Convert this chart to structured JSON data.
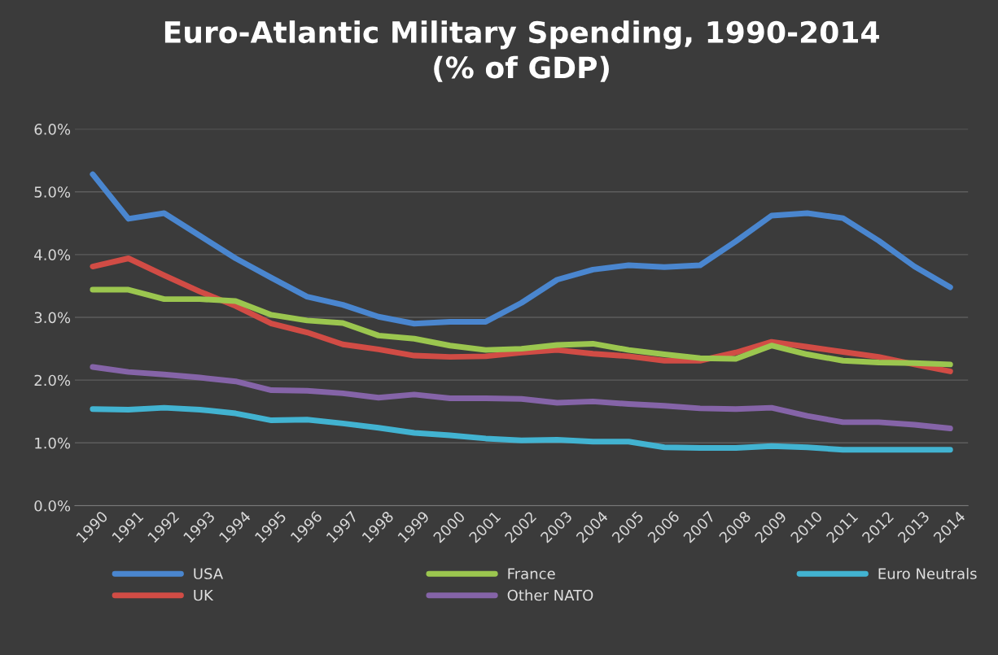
{
  "chart_data": {
    "type": "line",
    "title": "Euro-Atlantic Military Spending, 1990-2014\n(% of GDP)",
    "categories": [
      "1990",
      "1991",
      "1992",
      "1993",
      "1994",
      "1995",
      "1996",
      "1997",
      "1998",
      "1999",
      "2000",
      "2001",
      "2002",
      "2003",
      "2004",
      "2005",
      "2006",
      "2007",
      "2008",
      "2009",
      "2010",
      "2011",
      "2012",
      "2013",
      "2014"
    ],
    "series": [
      {
        "name": "USA",
        "color": "#4a86cf",
        "values": [
          5.28,
          4.57,
          4.66,
          4.3,
          3.94,
          3.63,
          3.33,
          3.2,
          3.01,
          2.9,
          2.93,
          2.93,
          3.23,
          3.6,
          3.76,
          3.83,
          3.8,
          3.83,
          4.21,
          4.62,
          4.66,
          4.58,
          4.22,
          3.81,
          3.48
        ]
      },
      {
        "name": "UK",
        "color": "#d14c45",
        "values": [
          3.81,
          3.94,
          3.67,
          3.41,
          3.18,
          2.9,
          2.76,
          2.57,
          2.49,
          2.39,
          2.37,
          2.38,
          2.44,
          2.48,
          2.42,
          2.38,
          2.31,
          2.31,
          2.44,
          2.61,
          2.53,
          2.45,
          2.37,
          2.25,
          2.14
        ]
      },
      {
        "name": "France",
        "color": "#9bc64f",
        "values": [
          3.44,
          3.44,
          3.29,
          3.29,
          3.26,
          3.04,
          2.95,
          2.91,
          2.71,
          2.66,
          2.55,
          2.48,
          2.5,
          2.56,
          2.58,
          2.48,
          2.41,
          2.35,
          2.34,
          2.55,
          2.41,
          2.31,
          2.28,
          2.27,
          2.25
        ]
      },
      {
        "name": "Other NATO",
        "color": "#8564a8",
        "values": [
          2.21,
          2.13,
          2.09,
          2.04,
          1.98,
          1.84,
          1.83,
          1.79,
          1.72,
          1.77,
          1.71,
          1.71,
          1.7,
          1.64,
          1.66,
          1.62,
          1.59,
          1.55,
          1.54,
          1.56,
          1.43,
          1.33,
          1.33,
          1.29,
          1.23
        ]
      },
      {
        "name": "Euro Neutrals",
        "color": "#42b3d1",
        "values": [
          1.54,
          1.53,
          1.56,
          1.53,
          1.47,
          1.36,
          1.37,
          1.31,
          1.24,
          1.16,
          1.12,
          1.07,
          1.04,
          1.05,
          1.02,
          1.02,
          0.93,
          0.92,
          0.92,
          0.95,
          0.93,
          0.89,
          0.89,
          0.89,
          0.89
        ]
      }
    ],
    "ylim": [
      0,
      6
    ],
    "yticks": [
      {
        "value": 0,
        "label": "0.0%"
      },
      {
        "value": 1,
        "label": "1.0%"
      },
      {
        "value": 2,
        "label": "2.0%"
      },
      {
        "value": 3,
        "label": "3.0%"
      },
      {
        "value": 4,
        "label": "4.0%"
      },
      {
        "value": 5,
        "label": "5.0%"
      },
      {
        "value": 6,
        "label": "6.0%"
      }
    ],
    "grid": "y",
    "legend": "bottom",
    "marker": "none",
    "line_style": "solid"
  }
}
